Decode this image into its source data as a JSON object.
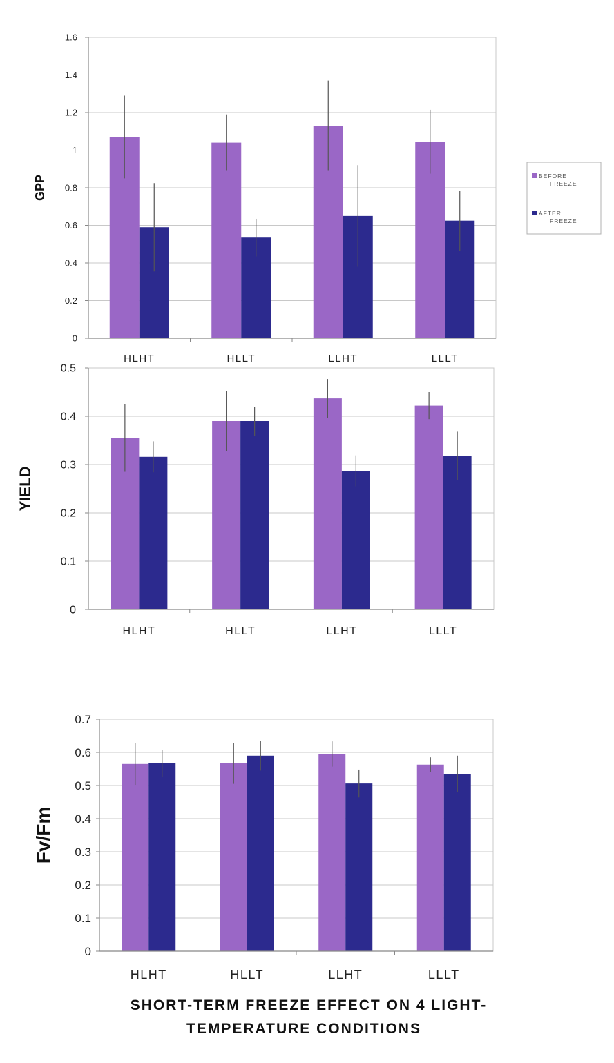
{
  "colors": {
    "before": "#9a67c6",
    "after": "#2c2a8e",
    "grid": "#c8c8c8",
    "axis": "#888888",
    "errorbar": "#555555"
  },
  "legend": {
    "before_label": [
      "BEFORE",
      "FREEZE"
    ],
    "after_label": [
      "AFTER",
      "FREEZE"
    ]
  },
  "caption": {
    "line1": "SHORT-TERM FREEZE EFFECT ON 4 LIGHT-",
    "line2": "TEMPERATURE CONDITIONS"
  },
  "chart_data": [
    {
      "type": "bar",
      "ylabel": "GPP",
      "categories": [
        "HLHT",
        "HLLT",
        "LLHT",
        "LLLT"
      ],
      "ylim": [
        0,
        1.6
      ],
      "yticks": [
        "0",
        "0.2",
        "0.4",
        "0.6",
        "0.8",
        "1",
        "1.2",
        "1.4",
        "1.6"
      ],
      "grid": true,
      "legend": "right",
      "series": [
        {
          "name": "BEFORE FREEZE",
          "values": [
            1.07,
            1.04,
            1.13,
            1.045
          ],
          "errors": [
            0.22,
            0.15,
            0.24,
            0.17
          ]
        },
        {
          "name": "AFTER FREEZE",
          "values": [
            0.59,
            0.535,
            0.65,
            0.625
          ],
          "errors": [
            0.235,
            0.1,
            0.27,
            0.16
          ]
        }
      ]
    },
    {
      "type": "bar",
      "ylabel": "YIELD",
      "categories": [
        "HLHT",
        "HLLT",
        "LLHT",
        "LLLT"
      ],
      "ylim": [
        0,
        0.5
      ],
      "yticks": [
        "0",
        "0.1",
        "0.2",
        "0.3",
        "0.4",
        "0.5"
      ],
      "grid": true,
      "series": [
        {
          "name": "BEFORE FREEZE",
          "values": [
            0.355,
            0.39,
            0.437,
            0.422
          ],
          "errors": [
            0.07,
            0.062,
            0.04,
            0.028
          ]
        },
        {
          "name": "AFTER FREEZE",
          "values": [
            0.316,
            0.39,
            0.287,
            0.318
          ],
          "errors": [
            0.032,
            0.03,
            0.032,
            0.05
          ]
        }
      ]
    },
    {
      "type": "bar",
      "ylabel": "Fv/Fm",
      "categories": [
        "HLHT",
        "HLLT",
        "LLHT",
        "LLLT"
      ],
      "ylim": [
        0,
        0.7
      ],
      "yticks": [
        "0",
        "0.1",
        "0.2",
        "0.3",
        "0.4",
        "0.5",
        "0.6",
        "0.7"
      ],
      "grid": true,
      "series": [
        {
          "name": "BEFORE FREEZE",
          "values": [
            0.565,
            0.567,
            0.595,
            0.563
          ],
          "errors": [
            0.063,
            0.062,
            0.038,
            0.022
          ]
        },
        {
          "name": "AFTER FREEZE",
          "values": [
            0.567,
            0.59,
            0.506,
            0.535
          ],
          "errors": [
            0.04,
            0.045,
            0.042,
            0.055
          ]
        }
      ]
    }
  ]
}
